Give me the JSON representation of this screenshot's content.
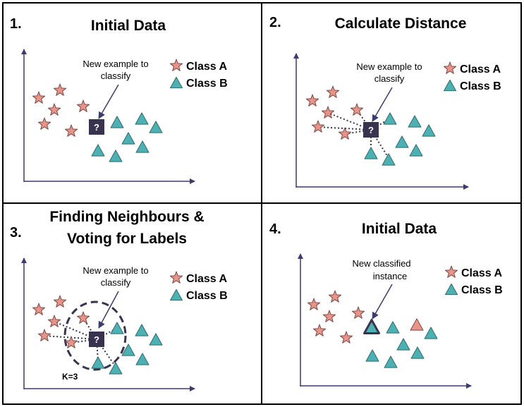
{
  "colors": {
    "class_a": "#e8948a",
    "class_b": "#4db1b3",
    "query": "#3a3350",
    "axis": "#3c3c6e",
    "border": "#000000"
  },
  "legend": {
    "class_a": "Class A",
    "class_b": "Class B"
  },
  "panels": [
    {
      "number": "1.",
      "title": [
        "Initial Data"
      ],
      "annotation": [
        "New example to",
        "classify"
      ],
      "query_label": "?"
    },
    {
      "number": "2.",
      "title": [
        "Calculate Distance"
      ],
      "annotation": [
        "New example to",
        "classify"
      ],
      "query_label": "?"
    },
    {
      "number": "3.",
      "title": [
        "Finding Neighbours &",
        "Voting for Labels"
      ],
      "annotation": [
        "New example to",
        "classify"
      ],
      "query_label": "?",
      "k_label": "K=3"
    },
    {
      "number": "4.",
      "title": [
        "Initial Data"
      ],
      "annotation": [
        "New classified",
        "instance"
      ]
    }
  ]
}
